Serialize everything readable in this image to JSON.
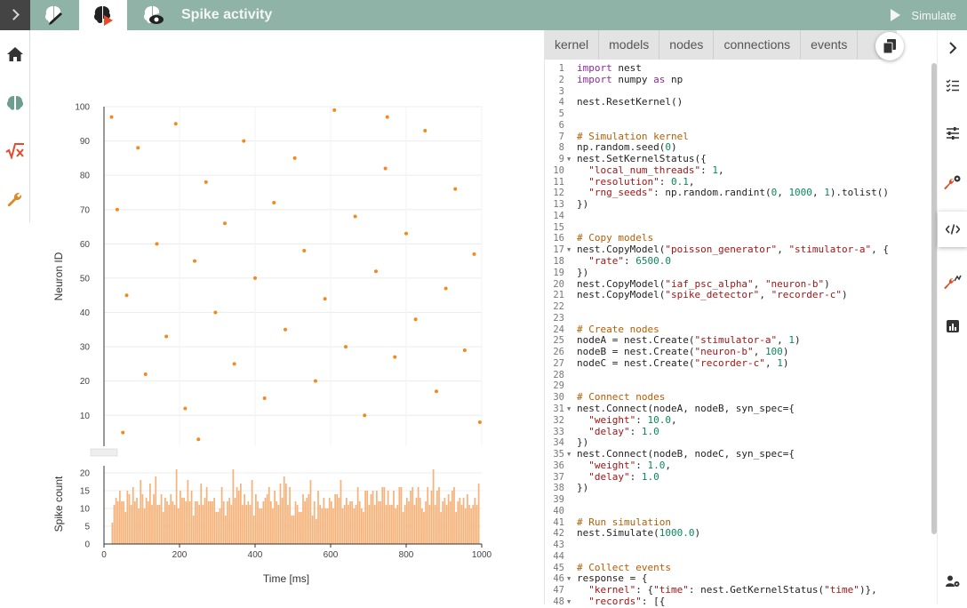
{
  "app": {
    "title": "Spike activity",
    "simulate_label": "Simulate"
  },
  "code_tabs": [
    "kernel",
    "models",
    "nodes",
    "connections",
    "events"
  ],
  "colors": {
    "header": "#8fb3a6",
    "spike": "#f28a1f",
    "bar": "#f7b27a",
    "accent_red": "#e34b2a"
  },
  "icons": {
    "top": [
      "chevron-right-icon",
      "brain-pencil-icon",
      "brain-play-icon",
      "brain-eye-icon",
      "play-icon"
    ],
    "left": [
      "home-icon",
      "brain-icon",
      "function-icon",
      "wrench-icon"
    ],
    "right": [
      "chevron-right-icon",
      "checklist-icon",
      "sliders-icon",
      "wrench-gear-icon",
      "code-icon",
      "wrench-chart-icon",
      "bar-chart-icon",
      "person-gear-icon"
    ]
  },
  "code": [
    {
      "n": "1",
      "t": "import nest"
    },
    {
      "n": "2",
      "t": "import numpy as np"
    },
    {
      "n": "3",
      "t": ""
    },
    {
      "n": "4",
      "t": "nest.ResetKernel()"
    },
    {
      "n": "5",
      "t": ""
    },
    {
      "n": "6",
      "t": ""
    },
    {
      "n": "7",
      "t": "# Simulation kernel"
    },
    {
      "n": "8",
      "t": "np.random.seed(0)"
    },
    {
      "n": "9",
      "t": "nest.SetKernelStatus({",
      "f": true
    },
    {
      "n": "10",
      "t": "  \"local_num_threads\": 1,"
    },
    {
      "n": "11",
      "t": "  \"resolution\": 0.1,"
    },
    {
      "n": "12",
      "t": "  \"rng_seeds\": np.random.randint(0, 1000, 1).tolist()"
    },
    {
      "n": "13",
      "t": "})"
    },
    {
      "n": "14",
      "t": ""
    },
    {
      "n": "15",
      "t": ""
    },
    {
      "n": "16",
      "t": "# Copy models"
    },
    {
      "n": "17",
      "t": "nest.CopyModel(\"poisson_generator\", \"stimulator-a\", {",
      "f": true
    },
    {
      "n": "18",
      "t": "  \"rate\": 6500.0"
    },
    {
      "n": "19",
      "t": "})"
    },
    {
      "n": "20",
      "t": "nest.CopyModel(\"iaf_psc_alpha\", \"neuron-b\")"
    },
    {
      "n": "21",
      "t": "nest.CopyModel(\"spike_detector\", \"recorder-c\")"
    },
    {
      "n": "22",
      "t": ""
    },
    {
      "n": "23",
      "t": ""
    },
    {
      "n": "24",
      "t": "# Create nodes"
    },
    {
      "n": "25",
      "t": "nodeA = nest.Create(\"stimulator-a\", 1)"
    },
    {
      "n": "26",
      "t": "nodeB = nest.Create(\"neuron-b\", 100)"
    },
    {
      "n": "27",
      "t": "nodeC = nest.Create(\"recorder-c\", 1)"
    },
    {
      "n": "28",
      "t": ""
    },
    {
      "n": "29",
      "t": ""
    },
    {
      "n": "30",
      "t": "# Connect nodes"
    },
    {
      "n": "31",
      "t": "nest.Connect(nodeA, nodeB, syn_spec={",
      "f": true
    },
    {
      "n": "32",
      "t": "  \"weight\": 10.0,"
    },
    {
      "n": "33",
      "t": "  \"delay\": 1.0"
    },
    {
      "n": "34",
      "t": "})"
    },
    {
      "n": "35",
      "t": "nest.Connect(nodeB, nodeC, syn_spec={",
      "f": true
    },
    {
      "n": "36",
      "t": "  \"weight\": 1.0,"
    },
    {
      "n": "37",
      "t": "  \"delay\": 1.0"
    },
    {
      "n": "38",
      "t": "})"
    },
    {
      "n": "39",
      "t": ""
    },
    {
      "n": "40",
      "t": ""
    },
    {
      "n": "41",
      "t": "# Run simulation"
    },
    {
      "n": "42",
      "t": "nest.Simulate(1000.0)"
    },
    {
      "n": "43",
      "t": ""
    },
    {
      "n": "44",
      "t": ""
    },
    {
      "n": "45",
      "t": "# Collect events"
    },
    {
      "n": "46",
      "t": "response = {",
      "f": true
    },
    {
      "n": "47",
      "t": "  \"kernel\": {\"time\": nest.GetKernelStatus(\"time\")},"
    },
    {
      "n": "48",
      "t": "  \"records\": [{",
      "f": true
    }
  ],
  "chart_data": [
    {
      "type": "scatter",
      "ylabel": "Neuron ID",
      "xlim": [
        0,
        1000
      ],
      "ylim": [
        1,
        100
      ],
      "yticks": [
        10,
        20,
        30,
        40,
        50,
        60,
        70,
        80,
        90,
        100
      ],
      "grid": true,
      "points": [
        [
          20,
          97
        ],
        [
          35,
          70
        ],
        [
          60,
          45
        ],
        [
          90,
          88
        ],
        [
          110,
          22
        ],
        [
          140,
          60
        ],
        [
          165,
          33
        ],
        [
          190,
          95
        ],
        [
          215,
          12
        ],
        [
          240,
          55
        ],
        [
          270,
          78
        ],
        [
          295,
          40
        ],
        [
          320,
          66
        ],
        [
          345,
          25
        ],
        [
          370,
          90
        ],
        [
          400,
          50
        ],
        [
          425,
          15
        ],
        [
          450,
          72
        ],
        [
          480,
          35
        ],
        [
          505,
          85
        ],
        [
          530,
          58
        ],
        [
          560,
          20
        ],
        [
          585,
          44
        ],
        [
          610,
          99
        ],
        [
          640,
          30
        ],
        [
          665,
          68
        ],
        [
          690,
          10
        ],
        [
          720,
          52
        ],
        [
          745,
          82
        ],
        [
          770,
          27
        ],
        [
          800,
          63
        ],
        [
          825,
          38
        ],
        [
          850,
          93
        ],
        [
          880,
          17
        ],
        [
          905,
          47
        ],
        [
          930,
          76
        ],
        [
          955,
          29
        ],
        [
          980,
          57
        ],
        [
          995,
          8
        ],
        [
          50,
          5
        ],
        [
          250,
          3
        ],
        [
          750,
          97
        ]
      ]
    },
    {
      "type": "bar",
      "xlabel": "Time [ms]",
      "ylabel": "Spike count",
      "xlim": [
        0,
        1000
      ],
      "ylim": [
        0,
        22
      ],
      "xticks": [
        0,
        200,
        400,
        600,
        800,
        1000
      ],
      "yticks": [
        0,
        5,
        10,
        15,
        20
      ],
      "bin_start": 20,
      "bin_width": 5,
      "values": [
        6,
        11,
        13,
        12,
        15,
        12,
        12,
        9,
        15,
        14,
        11,
        16,
        12,
        13,
        10,
        18,
        14,
        10,
        13,
        12,
        17,
        11,
        14,
        19,
        11,
        11,
        14,
        9,
        13,
        12,
        11,
        14,
        12,
        11,
        21,
        10,
        15,
        13,
        13,
        12,
        18,
        12,
        15,
        8,
        12,
        12,
        11,
        17,
        11,
        13,
        16,
        12,
        12,
        12,
        13,
        9,
        9,
        10,
        16,
        12,
        8,
        12,
        13,
        11,
        21,
        13,
        16,
        15,
        17,
        11,
        14,
        11,
        12,
        11,
        18,
        8,
        14,
        12,
        10,
        10,
        12,
        13,
        14,
        16,
        12,
        10,
        15,
        12,
        11,
        17,
        13,
        19,
        17,
        11,
        16,
        8,
        8,
        12,
        11,
        9,
        9,
        14,
        12,
        13,
        14,
        18,
        8,
        12,
        7,
        15,
        11,
        10,
        13,
        10,
        10,
        13,
        12,
        10,
        14,
        14,
        13,
        18,
        10,
        11,
        13,
        11,
        12,
        12,
        10,
        11,
        16,
        12,
        10,
        9,
        15,
        15,
        11,
        14,
        15,
        11,
        15,
        12,
        12,
        16,
        16,
        11,
        15,
        11,
        11,
        15,
        10,
        11,
        16,
        16,
        9,
        11,
        13,
        12,
        15,
        16,
        11,
        13,
        16,
        13,
        10,
        9,
        12,
        16,
        11,
        15,
        21,
        11,
        15,
        16,
        9,
        12,
        13,
        11,
        14,
        12,
        15,
        16,
        9,
        12,
        13,
        11,
        13,
        10,
        14,
        11,
        10,
        11,
        13,
        11,
        17
      ]
    }
  ]
}
